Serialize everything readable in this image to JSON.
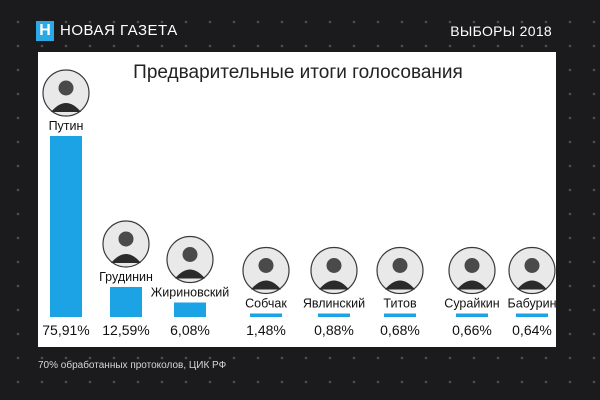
{
  "header": {
    "logo_letter": "Н",
    "brand": "НОВАЯ ГАЗЕТА",
    "section": "ВЫБОРЫ 2018"
  },
  "footer": {
    "source": "70% обработанных протоколов, ЦИК РФ"
  },
  "colors": {
    "bar": "#1ba3e6",
    "background": "#1b1b1d",
    "panel": "#ffffff"
  },
  "chart_data": {
    "type": "bar",
    "title": "Предварительные итоги голосования",
    "categories": [
      "Путин",
      "Грудинин",
      "Жириновский",
      "Собчак",
      "Явлинский",
      "Титов",
      "Сурайкин",
      "Бабурин"
    ],
    "values": [
      75.91,
      12.59,
      6.08,
      1.48,
      0.88,
      0.68,
      0.66,
      0.64
    ],
    "value_labels": [
      "75,91%",
      "12,59%",
      "6,08%",
      "1,48%",
      "0,88%",
      "0,68%",
      "0,66%",
      "0,64%"
    ],
    "xlabel": "",
    "ylabel": "",
    "ylim": [
      0,
      75.91
    ],
    "unit": "%",
    "grid": false,
    "legend": "none",
    "icons": [
      "portrait-photo",
      "portrait-photo",
      "portrait-photo",
      "portrait-photo",
      "portrait-photo",
      "portrait-photo",
      "portrait-photo",
      "portrait-photo"
    ]
  }
}
